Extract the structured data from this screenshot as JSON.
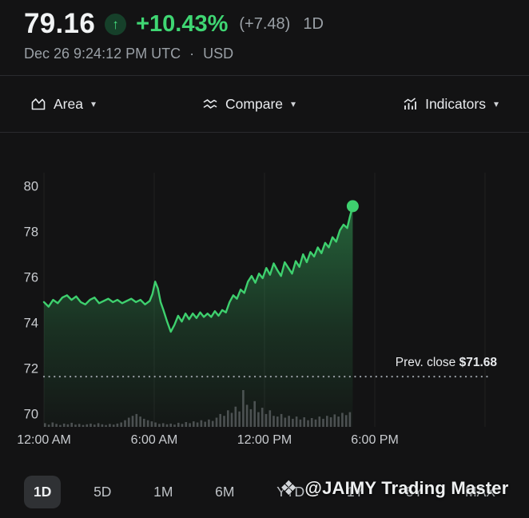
{
  "header": {
    "price": "79.16",
    "up_arrow": "↑",
    "change_percent": "+10.43%",
    "change_abs": "(+7.48)",
    "range_label": "1D",
    "timestamp": "Dec 26 9:24:12 PM UTC",
    "separator": "·",
    "currency": "USD"
  },
  "toolbar": {
    "area_label": "Area",
    "compare_label": "Compare",
    "indicators_label": "Indicators",
    "caret": "▾"
  },
  "chart": {
    "prev_close_label": "Prev. close",
    "prev_close_value": "$71.68"
  },
  "colors": {
    "accent_green": "#3fd673",
    "line": "#3ed06e",
    "fill_green": "#3ed06e",
    "volume": "#7a7f84",
    "grid": "#ffffff",
    "prev_close_line": "#9aa0a6"
  },
  "chart_data": {
    "type": "area",
    "x_unit": "hours",
    "ylim": [
      69.5,
      81
    ],
    "y_ticks": [
      80,
      78,
      76,
      74,
      72,
      70
    ],
    "x_ticks": [
      {
        "hour": 0,
        "label": "12:00 AM"
      },
      {
        "hour": 6,
        "label": "6:00 AM"
      },
      {
        "hour": 12,
        "label": "12:00 PM"
      },
      {
        "hour": 18,
        "label": "6:00 PM"
      }
    ],
    "grid_hours": [
      0,
      6,
      12,
      18,
      24
    ],
    "prev_close": 71.68,
    "last_price": 79.16,
    "t": [
      0,
      0.25,
      0.5,
      0.75,
      1,
      1.25,
      1.5,
      1.75,
      2,
      2.25,
      2.5,
      2.75,
      3,
      3.25,
      3.5,
      3.75,
      4,
      4.25,
      4.5,
      4.75,
      5,
      5.25,
      5.5,
      5.75,
      5.9,
      6.05,
      6.2,
      6.35,
      6.5,
      6.7,
      6.9,
      7.1,
      7.3,
      7.5,
      7.7,
      7.9,
      8.1,
      8.3,
      8.5,
      8.7,
      8.9,
      9.1,
      9.3,
      9.5,
      9.7,
      9.9,
      10.1,
      10.3,
      10.5,
      10.7,
      10.9,
      11.1,
      11.3,
      11.5,
      11.7,
      11.9,
      12.1,
      12.3,
      12.5,
      12.7,
      12.9,
      13.1,
      13.3,
      13.5,
      13.7,
      13.9,
      14.1,
      14.3,
      14.5,
      14.7,
      14.9,
      15.1,
      15.3,
      15.5,
      15.7,
      15.9,
      16.1,
      16.3,
      16.5,
      16.65,
      16.8
    ],
    "prices": [
      74.95,
      74.75,
      75.05,
      74.9,
      75.15,
      75.25,
      75.05,
      75.2,
      74.95,
      74.85,
      75.05,
      75.15,
      74.9,
      75,
      75.1,
      74.95,
      75.05,
      74.9,
      75,
      75.1,
      74.95,
      75.05,
      74.85,
      75,
      75.3,
      75.85,
      75.55,
      74.95,
      74.6,
      74.1,
      73.65,
      73.95,
      74.35,
      74.1,
      74.45,
      74.2,
      74.45,
      74.25,
      74.5,
      74.3,
      74.45,
      74.3,
      74.55,
      74.35,
      74.6,
      74.5,
      74.95,
      75.25,
      75.1,
      75.5,
      75.35,
      75.85,
      76.1,
      75.8,
      76.2,
      76,
      76.45,
      76.15,
      76.65,
      76.35,
      76.1,
      76.7,
      76.45,
      76.2,
      76.75,
      76.5,
      77.05,
      76.7,
      77.15,
      76.95,
      77.35,
      77.1,
      77.55,
      77.35,
      77.8,
      77.6,
      78.1,
      78.35,
      78.2,
      78.7,
      79.16
    ],
    "volumes": [
      0.1,
      0.06,
      0.12,
      0.08,
      0.05,
      0.09,
      0.07,
      0.11,
      0.06,
      0.08,
      0.05,
      0.07,
      0.09,
      0.06,
      0.1,
      0.07,
      0.05,
      0.08,
      0.06,
      0.09,
      0.12,
      0.18,
      0.25,
      0.3,
      0.35,
      0.28,
      0.22,
      0.18,
      0.15,
      0.12,
      0.08,
      0.1,
      0.07,
      0.09,
      0.06,
      0.11,
      0.08,
      0.13,
      0.1,
      0.15,
      0.12,
      0.18,
      0.14,
      0.2,
      0.16,
      0.25,
      0.35,
      0.3,
      0.45,
      0.38,
      0.55,
      0.42,
      1.0,
      0.6,
      0.48,
      0.7,
      0.4,
      0.52,
      0.35,
      0.45,
      0.3,
      0.28,
      0.35,
      0.25,
      0.3,
      0.22,
      0.28,
      0.2,
      0.26,
      0.18,
      0.24,
      0.2,
      0.28,
      0.22,
      0.3,
      0.26,
      0.34,
      0.28,
      0.38,
      0.32,
      0.4
    ]
  },
  "tabs": {
    "items": [
      {
        "label": "1D",
        "selected": true
      },
      {
        "label": "5D",
        "selected": false
      },
      {
        "label": "1M",
        "selected": false
      },
      {
        "label": "6M",
        "selected": false
      },
      {
        "label": "YTD",
        "selected": false
      },
      {
        "label": "1Y",
        "selected": false
      },
      {
        "label": "5Y",
        "selected": false
      },
      {
        "label": "MAX",
        "selected": false
      }
    ]
  },
  "watermark": {
    "icon": "❖",
    "text": "@JAIMY Trading Master"
  }
}
